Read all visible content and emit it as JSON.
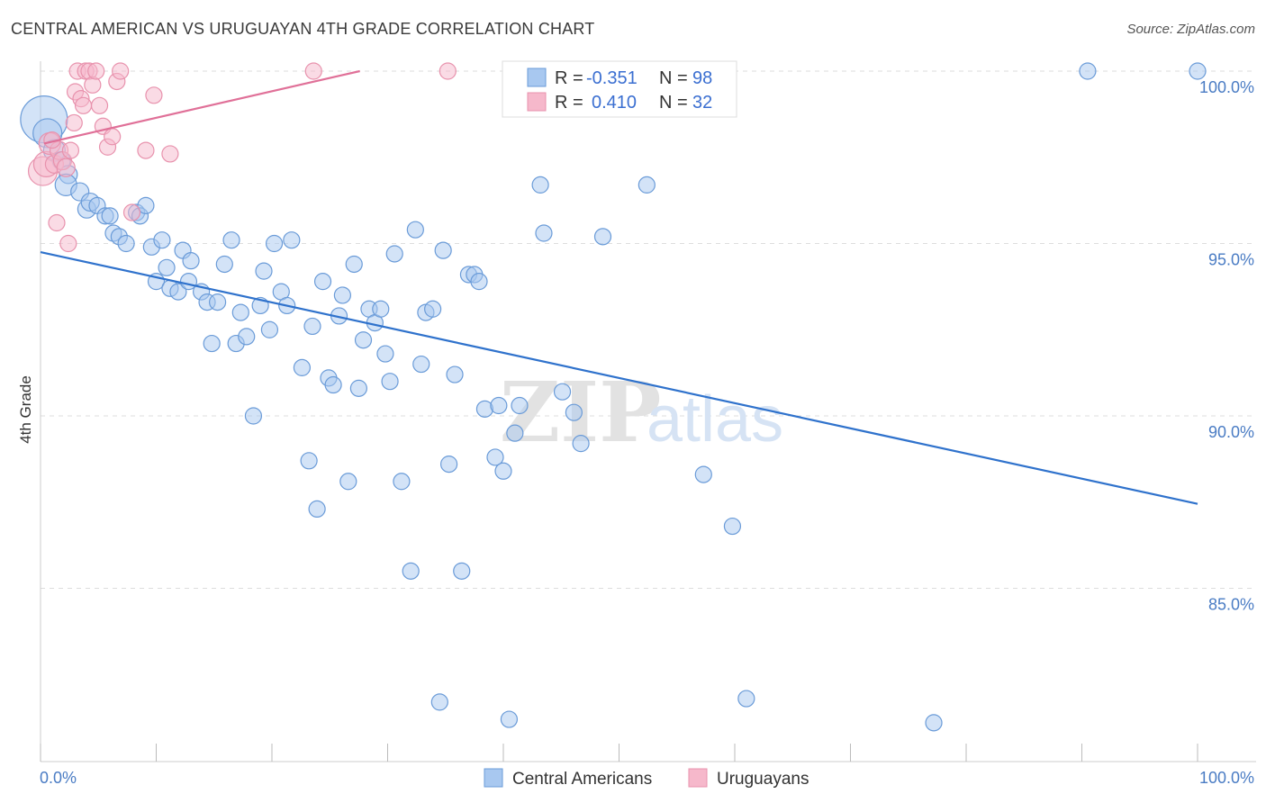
{
  "title": "CENTRAL AMERICAN VS URUGUAYAN 4TH GRADE CORRELATION CHART",
  "source": "Source: ZipAtlas.com",
  "watermark": {
    "zip": "ZIP",
    "atlas": "atlas"
  },
  "colors": {
    "blue_fill": "#a8c8f0",
    "blue_stroke": "#6a9bd8",
    "blue_line": "#2f72cc",
    "pink_fill": "#f6b8cb",
    "pink_stroke": "#e892ad",
    "pink_line": "#e07098",
    "grid": "#dddddd",
    "tick_label": "#4a7cc4"
  },
  "legend": {
    "rows": [
      {
        "r_label": "R = ",
        "r_value": "-0.351",
        "n_label": "N = ",
        "n_value": "98"
      },
      {
        "r_label": "R = ",
        "r_value": "0.410",
        "n_label": "N = ",
        "n_value": "32"
      }
    ]
  },
  "chart_data": {
    "type": "scatter",
    "title": "CENTRAL AMERICAN VS URUGUAYAN 4TH GRADE CORRELATION CHART",
    "xlabel": "",
    "ylabel": "4th Grade",
    "xlim": [
      0,
      100
    ],
    "ylim": [
      80.5,
      100.8
    ],
    "x_tick_labels": [
      "0.0%",
      "100.0%"
    ],
    "y_ticks": [
      85,
      90,
      95,
      100
    ],
    "y_tick_labels": [
      "85.0%",
      "90.0%",
      "95.0%",
      "100.0%"
    ],
    "grid": true,
    "legend_position": "top-center",
    "series": [
      {
        "name": "Central Americans",
        "trend": {
          "x": [
            0,
            100
          ],
          "y": [
            94.75,
            87.45
          ]
        },
        "points": [
          [
            0.3,
            98.6,
            26
          ],
          [
            0.6,
            98.2,
            16
          ],
          [
            1.2,
            97.7,
            12
          ],
          [
            1.8,
            97.4,
            10
          ],
          [
            2.4,
            97.0,
            10
          ],
          [
            2.2,
            96.7,
            12
          ],
          [
            3.4,
            96.5,
            10
          ],
          [
            4.0,
            96.0,
            10
          ],
          [
            4.3,
            96.2,
            10
          ],
          [
            4.9,
            96.1,
            9
          ],
          [
            5.6,
            95.8,
            9
          ],
          [
            6.0,
            95.8,
            9
          ],
          [
            6.3,
            95.3,
            9
          ],
          [
            6.8,
            95.2,
            9
          ],
          [
            7.4,
            95.0,
            9
          ],
          [
            8.3,
            95.9,
            9
          ],
          [
            8.6,
            95.8,
            9
          ],
          [
            9.1,
            96.1,
            9
          ],
          [
            9.6,
            94.9,
            9
          ],
          [
            10.0,
            93.9,
            9
          ],
          [
            10.5,
            95.1,
            9
          ],
          [
            10.9,
            94.3,
            9
          ],
          [
            11.2,
            93.7,
            9
          ],
          [
            11.9,
            93.6,
            9
          ],
          [
            12.3,
            94.8,
            9
          ],
          [
            12.8,
            93.9,
            9
          ],
          [
            13.0,
            94.5,
            9
          ],
          [
            13.9,
            93.6,
            9
          ],
          [
            14.4,
            93.3,
            9
          ],
          [
            14.8,
            92.1,
            9
          ],
          [
            15.3,
            93.3,
            9
          ],
          [
            15.9,
            94.4,
            9
          ],
          [
            16.5,
            95.1,
            9
          ],
          [
            16.9,
            92.1,
            9
          ],
          [
            17.3,
            93.0,
            9
          ],
          [
            17.8,
            92.3,
            9
          ],
          [
            18.4,
            90.0,
            9
          ],
          [
            19.0,
            93.2,
            9
          ],
          [
            19.3,
            94.2,
            9
          ],
          [
            19.8,
            92.5,
            9
          ],
          [
            20.2,
            95.0,
            9
          ],
          [
            20.8,
            93.6,
            9
          ],
          [
            21.3,
            93.2,
            9
          ],
          [
            21.7,
            95.1,
            9
          ],
          [
            22.6,
            91.4,
            9
          ],
          [
            23.2,
            88.7,
            9
          ],
          [
            23.5,
            92.6,
            9
          ],
          [
            23.9,
            87.3,
            9
          ],
          [
            24.4,
            93.9,
            9
          ],
          [
            24.9,
            91.1,
            9
          ],
          [
            25.3,
            90.9,
            9
          ],
          [
            25.8,
            92.9,
            9
          ],
          [
            26.1,
            93.5,
            9
          ],
          [
            26.6,
            88.1,
            9
          ],
          [
            27.1,
            94.4,
            9
          ],
          [
            27.5,
            90.8,
            9
          ],
          [
            27.9,
            92.2,
            9
          ],
          [
            28.4,
            93.1,
            9
          ],
          [
            28.9,
            92.7,
            9
          ],
          [
            29.4,
            93.1,
            9
          ],
          [
            29.8,
            91.8,
            9
          ],
          [
            30.2,
            91.0,
            9
          ],
          [
            30.6,
            94.7,
            9
          ],
          [
            31.2,
            88.1,
            9
          ],
          [
            32.0,
            85.5,
            9
          ],
          [
            32.4,
            95.4,
            9
          ],
          [
            32.9,
            91.5,
            9
          ],
          [
            33.3,
            93.0,
            9
          ],
          [
            33.9,
            93.1,
            9
          ],
          [
            34.5,
            81.7,
            9
          ],
          [
            34.8,
            94.8,
            9
          ],
          [
            35.3,
            88.6,
            9
          ],
          [
            35.8,
            91.2,
            9
          ],
          [
            36.4,
            85.5,
            9
          ],
          [
            37.0,
            94.1,
            9
          ],
          [
            37.5,
            94.1,
            9
          ],
          [
            37.9,
            93.9,
            9
          ],
          [
            38.4,
            90.2,
            9
          ],
          [
            39.3,
            88.8,
            9
          ],
          [
            39.6,
            90.3,
            9
          ],
          [
            40.0,
            88.4,
            9
          ],
          [
            40.5,
            81.2,
            9
          ],
          [
            41.0,
            89.5,
            9
          ],
          [
            41.4,
            90.3,
            9
          ],
          [
            43.2,
            96.7,
            9
          ],
          [
            43.5,
            95.3,
            9
          ],
          [
            45.1,
            90.7,
            9
          ],
          [
            46.1,
            90.1,
            9
          ],
          [
            46.7,
            89.2,
            9
          ],
          [
            48.6,
            95.2,
            9
          ],
          [
            50.0,
            100.0,
            9
          ],
          [
            52.4,
            96.7,
            9
          ],
          [
            57.3,
            88.3,
            9
          ],
          [
            59.8,
            86.8,
            9
          ],
          [
            61.0,
            81.8,
            9
          ],
          [
            77.2,
            81.1,
            9
          ],
          [
            90.5,
            100.0,
            9
          ],
          [
            100.0,
            100.0,
            9
          ]
        ]
      },
      {
        "name": "Uruguayans",
        "trend": {
          "x": [
            0.3,
            27.6
          ],
          "y": [
            97.9,
            100.0
          ]
        },
        "points": [
          [
            0.2,
            97.1,
            16
          ],
          [
            0.5,
            97.3,
            14
          ],
          [
            0.8,
            97.9,
            12
          ],
          [
            1.2,
            97.3,
            10
          ],
          [
            1.6,
            97.7,
            10
          ],
          [
            1.9,
            97.4,
            10
          ],
          [
            2.2,
            97.2,
            10
          ],
          [
            2.6,
            97.7,
            9
          ],
          [
            1.4,
            95.6,
            9
          ],
          [
            2.4,
            95.0,
            9
          ],
          [
            3.0,
            99.4,
            9
          ],
          [
            3.2,
            100.0,
            9
          ],
          [
            3.5,
            99.2,
            9
          ],
          [
            3.7,
            99.0,
            9
          ],
          [
            3.9,
            100.0,
            9
          ],
          [
            4.2,
            100.0,
            9
          ],
          [
            4.5,
            99.6,
            9
          ],
          [
            4.8,
            100.0,
            9
          ],
          [
            5.1,
            99.0,
            9
          ],
          [
            5.4,
            98.4,
            9
          ],
          [
            5.8,
            97.8,
            9
          ],
          [
            6.2,
            98.1,
            9
          ],
          [
            6.6,
            99.7,
            9
          ],
          [
            6.9,
            100.0,
            9
          ],
          [
            7.9,
            95.9,
            9
          ],
          [
            9.1,
            97.7,
            9
          ],
          [
            9.8,
            99.3,
            9
          ],
          [
            11.2,
            97.6,
            9
          ],
          [
            23.6,
            100.0,
            9
          ],
          [
            35.2,
            100.0,
            9
          ],
          [
            2.9,
            98.5,
            9
          ],
          [
            1.0,
            98.0,
            9
          ]
        ]
      }
    ]
  },
  "bottom_legend": [
    "Central Americans",
    "Uruguayans"
  ]
}
